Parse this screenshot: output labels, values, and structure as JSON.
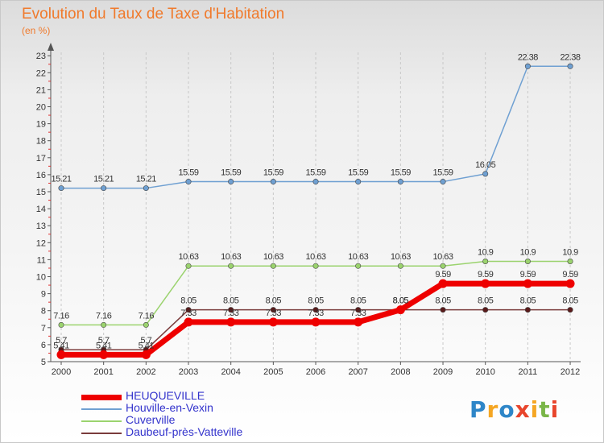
{
  "chart_data": {
    "type": "line",
    "title": "Evolution du Taux de Taxe d'Habitation",
    "subtitle": "(en %)",
    "x": [
      "2000",
      "2001",
      "2002",
      "2003",
      "2004",
      "2005",
      "2006",
      "2007",
      "2008",
      "2009",
      "2010",
      "2011",
      "2012"
    ],
    "ylim": [
      5,
      23
    ],
    "yticks": [
      "5",
      "6",
      "7",
      "8",
      "9",
      "10",
      "11",
      "12",
      "13",
      "14",
      "15",
      "16",
      "17",
      "18",
      "19",
      "20",
      "21",
      "22",
      "23"
    ],
    "grid": "vertical dashed",
    "legend_position": "bottom-left",
    "series": [
      {
        "name": "HEUQUEVILLE",
        "color": "#ee0000",
        "values": [
          5.41,
          5.41,
          5.41,
          7.33,
          7.33,
          7.33,
          7.33,
          7.33,
          8.05,
          9.59,
          9.59,
          9.59,
          9.59
        ],
        "labels": [
          "5.41",
          "5.41",
          "5.41",
          "7.33",
          "7.33",
          "7.33",
          "7.33",
          "7.33",
          "8.05",
          "9.59",
          "9.59",
          "9.59",
          "9.59"
        ]
      },
      {
        "name": "Houville-en-Vexin",
        "color": "#6fa0d2",
        "values": [
          15.21,
          15.21,
          15.21,
          15.59,
          15.59,
          15.59,
          15.59,
          15.59,
          15.59,
          15.59,
          16.05,
          22.38,
          22.38
        ],
        "labels": [
          "15.21",
          "15.21",
          "15.21",
          "15.59",
          "15.59",
          "15.59",
          "15.59",
          "15.59",
          "15.59",
          "15.59",
          "16.05",
          "22.38",
          "22.38"
        ]
      },
      {
        "name": "Cuverville",
        "color": "#9bd36e",
        "values": [
          7.16,
          7.16,
          7.16,
          10.63,
          10.63,
          10.63,
          10.63,
          10.63,
          10.63,
          10.63,
          10.9,
          10.9,
          10.9
        ],
        "labels": [
          "7.16",
          "7.16",
          "7.16",
          "10.63",
          "10.63",
          "10.63",
          "10.63",
          "10.63",
          "10.63",
          "10.63",
          "10.9",
          "10.9",
          "10.9"
        ]
      },
      {
        "name": "Daubeuf-près-Vatteville",
        "color": "#7a3b3b",
        "values": [
          5.7,
          5.7,
          5.7,
          8.05,
          8.05,
          8.05,
          8.05,
          8.05,
          8.05,
          8.05,
          8.05,
          8.05,
          8.05
        ],
        "labels": [
          "5.7",
          "5.7",
          "5.7",
          "8.05",
          "8.05",
          "8.05",
          "8.05",
          "8.05",
          "8.05",
          "8.05",
          "8.05",
          "8.05",
          "8.05"
        ]
      }
    ]
  },
  "logo": {
    "letters": [
      "P",
      "r",
      "o",
      "x",
      "i",
      "t",
      "i"
    ],
    "colors": [
      "#2e86c8",
      "#f5a623",
      "#2e86c8",
      "#e8452c",
      "#f5a623",
      "#7ab648",
      "#e8452c"
    ]
  }
}
